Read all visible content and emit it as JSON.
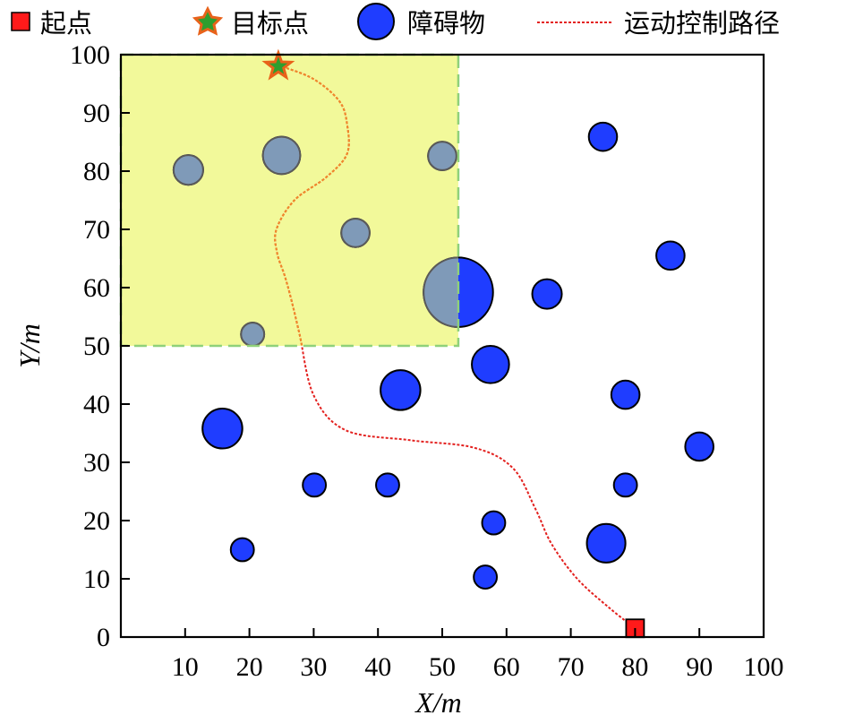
{
  "chart_data": {
    "type": "scatter",
    "xlabel": "X/m",
    "ylabel": "Y/m",
    "xlim": [
      0,
      100
    ],
    "ylim": [
      0,
      100
    ],
    "xticks": [
      "10",
      "20",
      "30",
      "40",
      "50",
      "60",
      "70",
      "80",
      "90",
      "100"
    ],
    "yticks": [
      "0",
      "10",
      "20",
      "30",
      "40",
      "50",
      "60",
      "70",
      "80",
      "90",
      "100"
    ],
    "legend_position": "top",
    "legend": [
      {
        "key": "start",
        "label": "起点"
      },
      {
        "key": "goal",
        "label": "目标点"
      },
      {
        "key": "obstacle",
        "label": "障碍物"
      },
      {
        "key": "path",
        "label": "运动控制路径"
      }
    ],
    "colors": {
      "start": "#ff1a1a",
      "goal_fill": "#2e9e2e",
      "goal_edge": "#e8621a",
      "obstacle": "#1f3dff",
      "obstacle_shaded": "#7f9ab8",
      "path": "#e3211f",
      "region_fill": "#f2f99a",
      "region_edge": "#8fd17a"
    },
    "start": {
      "x": 80,
      "y": 1.5
    },
    "goal": {
      "x": 24.5,
      "y": 98
    },
    "region": {
      "x": [
        0,
        52.5
      ],
      "y": [
        50,
        100
      ]
    },
    "obstacles": [
      {
        "x": 10.5,
        "y": 80.2,
        "r": 2.3
      },
      {
        "x": 25,
        "y": 82.7,
        "r": 2.9
      },
      {
        "x": 50,
        "y": 82.6,
        "r": 2.2
      },
      {
        "x": 36.5,
        "y": 69.4,
        "r": 2.2
      },
      {
        "x": 20.5,
        "y": 52,
        "r": 1.8
      },
      {
        "x": 52.5,
        "y": 59.2,
        "r": 5.4
      },
      {
        "x": 75,
        "y": 85.9,
        "r": 2.2
      },
      {
        "x": 85.5,
        "y": 65.5,
        "r": 2.2
      },
      {
        "x": 66.3,
        "y": 58.9,
        "r": 2.3
      },
      {
        "x": 57.5,
        "y": 46.8,
        "r": 2.9
      },
      {
        "x": 43.5,
        "y": 42.4,
        "r": 3.1
      },
      {
        "x": 78.5,
        "y": 41.6,
        "r": 2.2
      },
      {
        "x": 15.8,
        "y": 35.8,
        "r": 3.1
      },
      {
        "x": 90,
        "y": 32.7,
        "r": 2.2
      },
      {
        "x": 30.1,
        "y": 26.1,
        "r": 1.8
      },
      {
        "x": 41.5,
        "y": 26.1,
        "r": 1.8
      },
      {
        "x": 78.5,
        "y": 26.1,
        "r": 1.8
      },
      {
        "x": 58,
        "y": 19.6,
        "r": 1.8
      },
      {
        "x": 75.5,
        "y": 16.1,
        "r": 3.0
      },
      {
        "x": 18.9,
        "y": 15,
        "r": 1.8
      },
      {
        "x": 56.7,
        "y": 10.3,
        "r": 1.8
      }
    ],
    "path": [
      [
        80,
        1.5
      ],
      [
        76,
        5
      ],
      [
        71,
        10
      ],
      [
        67,
        16
      ],
      [
        64.5,
        22
      ],
      [
        61,
        29
      ],
      [
        55,
        32.5
      ],
      [
        45,
        33.8
      ],
      [
        35,
        35.5
      ],
      [
        30,
        41.5
      ],
      [
        27.8,
        52
      ],
      [
        26.5,
        58
      ],
      [
        25.5,
        62
      ],
      [
        24.3,
        66
      ],
      [
        24.2,
        70
      ],
      [
        27,
        75
      ],
      [
        32,
        79
      ],
      [
        35.2,
        83
      ],
      [
        35.2,
        88
      ],
      [
        34,
        92
      ],
      [
        30,
        95.8
      ],
      [
        25,
        98
      ]
    ]
  }
}
